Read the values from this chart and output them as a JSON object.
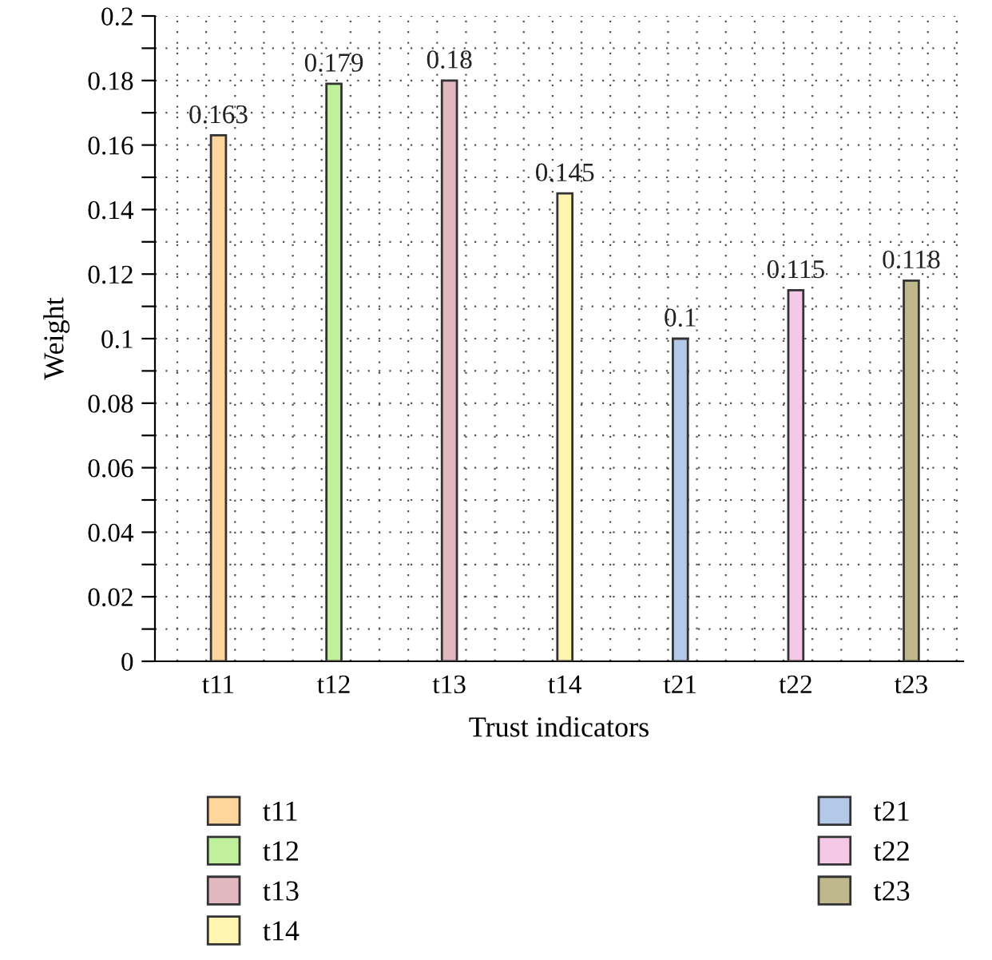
{
  "chart_data": {
    "type": "bar",
    "xlabel": "Trust indicators",
    "ylabel": "Weight",
    "categories": [
      "t11",
      "t12",
      "t13",
      "t14",
      "t21",
      "t22",
      "t23"
    ],
    "series": [
      {
        "name": "t11",
        "color": "#fed69c",
        "values": [
          0.163,
          null,
          null,
          null,
          null,
          null,
          null
        ]
      },
      {
        "name": "t12",
        "color": "#c0f09c",
        "values": [
          null,
          0.179,
          null,
          null,
          null,
          null,
          null
        ]
      },
      {
        "name": "t13",
        "color": "#e1b8c0",
        "values": [
          null,
          null,
          0.18,
          null,
          null,
          null,
          null
        ]
      },
      {
        "name": "t14",
        "color": "#fff5b0",
        "values": [
          null,
          null,
          null,
          0.145,
          null,
          null,
          null
        ]
      },
      {
        "name": "t21",
        "color": "#b4c8e8",
        "values": [
          null,
          null,
          null,
          null,
          0.1,
          null,
          null
        ]
      },
      {
        "name": "t22",
        "color": "#f6c8e8",
        "values": [
          null,
          null,
          null,
          null,
          null,
          0.115,
          null
        ]
      },
      {
        "name": "t23",
        "color": "#bfb88c",
        "values": [
          null,
          null,
          null,
          null,
          null,
          null,
          0.118
        ]
      }
    ],
    "ylim": [
      0,
      0.2
    ],
    "yticks": [
      0,
      {
        "value": 0.01,
        "label": null
      },
      0.02,
      {
        "value": 0.03,
        "label": null
      },
      0.04,
      {
        "value": 0.05,
        "label": null
      },
      0.06,
      {
        "value": 0.07,
        "label": null
      },
      0.08,
      {
        "value": 0.09,
        "label": null
      },
      0.1,
      {
        "value": 0.11,
        "label": null
      },
      0.12,
      {
        "value": 0.13,
        "label": null
      },
      0.14,
      {
        "value": 0.15,
        "label": null
      },
      0.16,
      {
        "value": 0.17,
        "label": null
      },
      0.18,
      {
        "value": 0.19,
        "label": null
      },
      0.2
    ],
    "grid": true,
    "data_labels": true,
    "legend": "bottom"
  }
}
